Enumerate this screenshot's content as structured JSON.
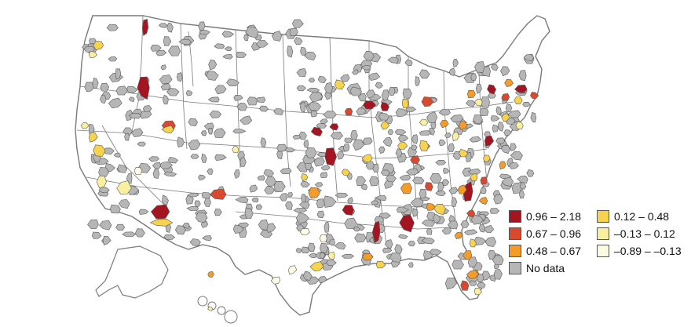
{
  "legend": {
    "items": [
      {
        "label": "0.96 – 2.18",
        "color": "#a31621"
      },
      {
        "label": "0.12 – 0.48",
        "color": "#f5d34f"
      },
      {
        "label": "0.67 – 0.96",
        "color": "#d8492f"
      },
      {
        "label": "–0.13 – 0.12",
        "color": "#f8efa1"
      },
      {
        "label": "0.48 – 0.67",
        "color": "#f39c2a"
      },
      {
        "label": "–0.89 – –0.13",
        "color": "#fdfbe4"
      },
      {
        "label": "No data",
        "color": "#b6b6b6"
      }
    ]
  },
  "colors": {
    "land": "#ffffff",
    "border": "#7a7a7a",
    "county_border": "#5a5a5a",
    "no_data": "#b6b6b6",
    "bin_1": "#a31621",
    "bin_2": "#d8492f",
    "bin_3": "#f39c2a",
    "bin_4": "#f5d34f",
    "bin_5": "#f8efa1",
    "bin_6": "#fdfbe4"
  }
}
